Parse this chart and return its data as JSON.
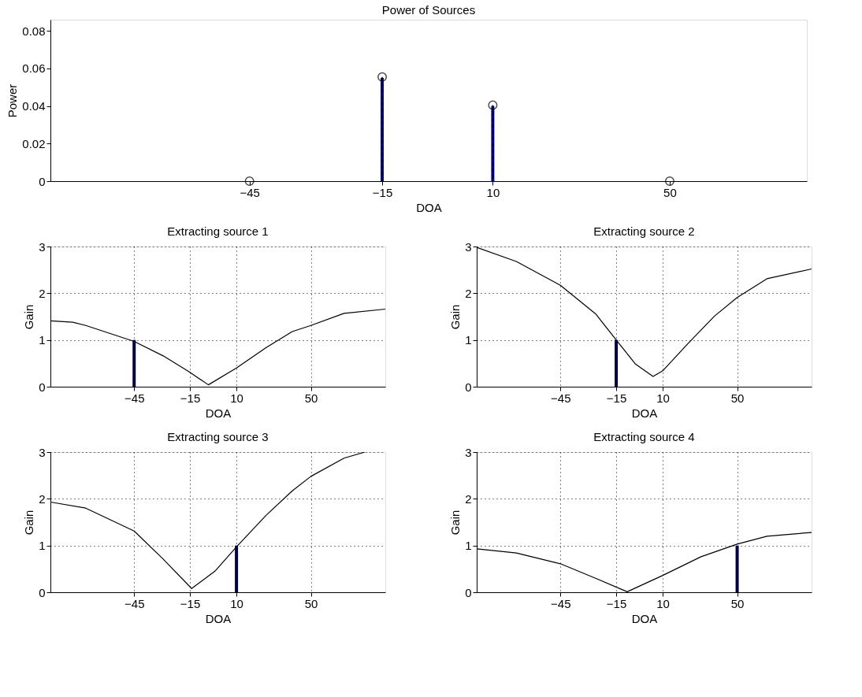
{
  "chart_data": [
    {
      "type": "lollipop",
      "title": "Power of Sources",
      "xlabel": "DOA",
      "ylabel": "Power",
      "xlim": [
        -90,
        81
      ],
      "xticks": [
        -45,
        -15,
        10,
        50
      ],
      "ylim": [
        0,
        0.086
      ],
      "yticks": [
        0,
        0.02,
        0.04,
        0.06,
        0.08
      ],
      "grid": false,
      "series": [
        {
          "type": "bar",
          "color": "#0000a0",
          "x": [
            -15,
            10
          ],
          "values": [
            0.055,
            0.04
          ]
        },
        {
          "color": "#000000",
          "marker": "circle",
          "line_style": "dashed",
          "x": [
            -45,
            -15,
            10,
            50
          ],
          "values": [
            0,
            0.0555,
            0.0405,
            0
          ]
        }
      ]
    },
    {
      "type": "line",
      "title": "Extracting source 1",
      "xlabel": "DOA",
      "ylabel": "Gain",
      "xlim": [
        -90,
        90
      ],
      "xticks": [
        -45,
        -15,
        10,
        50
      ],
      "ylim": [
        0,
        3
      ],
      "yticks": [
        0,
        1,
        2,
        3
      ],
      "grid": true,
      "series": [
        {
          "color": "#000000",
          "x": [
            -90,
            -78,
            -71,
            -45,
            -29.4,
            -15.5,
            -5.1,
            10,
            26,
            40,
            50,
            67.8,
            90
          ],
          "values": [
            1.41,
            1.38,
            1.31,
            0.97,
            0.66,
            0.32,
            0.04,
            0.4,
            0.84,
            1.18,
            1.31,
            1.57,
            1.66
          ]
        },
        {
          "type": "bar",
          "color": "#000040",
          "x": [
            -45
          ],
          "values": [
            1
          ]
        }
      ]
    },
    {
      "type": "line",
      "title": "Extracting source 2",
      "xlabel": "DOA",
      "ylabel": "Gain",
      "xlim": [
        -90,
        90
      ],
      "xticks": [
        -45,
        -15,
        10,
        50
      ],
      "ylim": [
        0,
        3
      ],
      "yticks": [
        0,
        1,
        2,
        3
      ],
      "grid": true,
      "series": [
        {
          "color": "#000000",
          "x": [
            -90,
            -68.7,
            -45,
            -26.1,
            -15,
            -4.8,
            4.8,
            10,
            23.5,
            37.8,
            50,
            66,
            90
          ],
          "values": [
            2.98,
            2.68,
            2.17,
            1.56,
            1.0,
            0.49,
            0.22,
            0.34,
            0.92,
            1.51,
            1.91,
            2.31,
            2.52
          ]
        },
        {
          "type": "bar",
          "color": "#000040",
          "x": [
            -15
          ],
          "values": [
            1
          ]
        }
      ]
    },
    {
      "type": "line",
      "title": "Extracting source 3",
      "xlabel": "DOA",
      "ylabel": "Gain",
      "xlim": [
        -90,
        90
      ],
      "xticks": [
        -45,
        -15,
        10,
        50
      ],
      "ylim": [
        0,
        3
      ],
      "yticks": [
        0,
        1,
        2,
        3
      ],
      "grid": true,
      "series": [
        {
          "color": "#000000",
          "x": [
            -90,
            -71,
            -45,
            -29.4,
            -14.1,
            -1.6,
            10,
            26,
            40,
            50,
            67.8,
            79
          ],
          "values": [
            1.93,
            1.8,
            1.31,
            0.71,
            0.08,
            0.45,
            0.97,
            1.65,
            2.17,
            2.48,
            2.87,
            3.0
          ]
        },
        {
          "type": "bar",
          "color": "#000040",
          "x": [
            10
          ],
          "values": [
            1
          ]
        }
      ]
    },
    {
      "type": "line",
      "title": "Extracting source 4",
      "xlabel": "DOA",
      "ylabel": "Gain",
      "xlim": [
        -90,
        90
      ],
      "xticks": [
        -45,
        -15,
        10,
        50
      ],
      "ylim": [
        0,
        3
      ],
      "yticks": [
        0,
        1,
        2,
        3
      ],
      "grid": true,
      "series": [
        {
          "color": "#000000",
          "x": [
            -90,
            -68.7,
            -45,
            -26.1,
            -9.1,
            10,
            30.6,
            50,
            66,
            90
          ],
          "values": [
            0.93,
            0.84,
            0.61,
            0.3,
            0.01,
            0.36,
            0.76,
            1.03,
            1.2,
            1.28
          ]
        },
        {
          "type": "bar",
          "color": "#000040",
          "x": [
            50
          ],
          "values": [
            1
          ]
        }
      ]
    }
  ]
}
